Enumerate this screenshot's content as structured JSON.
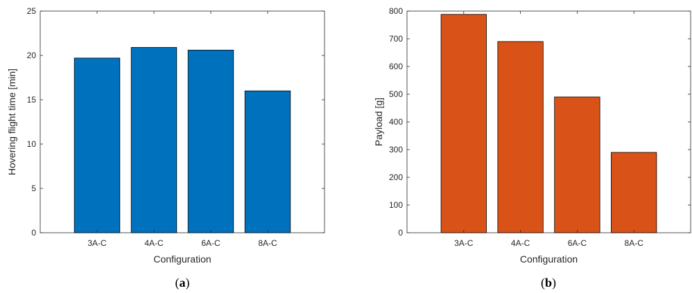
{
  "chart_data": [
    {
      "type": "bar",
      "categories": [
        "3A-C",
        "4A-C",
        "6A-C",
        "8A-C"
      ],
      "values": [
        19.7,
        20.9,
        20.6,
        16.0
      ],
      "xlabel": "Configuration",
      "ylabel": "Hovering flight time [min]",
      "ylim": [
        0,
        25
      ],
      "yticks": [
        0,
        5,
        10,
        15,
        20,
        25
      ],
      "color": "#0072BD",
      "caption_label": "a",
      "grid": false
    },
    {
      "type": "bar",
      "categories": [
        "3A-C",
        "4A-C",
        "6A-C",
        "8A-C"
      ],
      "values": [
        788,
        690,
        490,
        290
      ],
      "xlabel": "Configuration",
      "ylabel": "Payload [g]",
      "ylim": [
        0,
        800
      ],
      "yticks": [
        0,
        100,
        200,
        300,
        400,
        500,
        600,
        700,
        800
      ],
      "color": "#D95319",
      "caption_label": "b",
      "grid": false
    }
  ]
}
